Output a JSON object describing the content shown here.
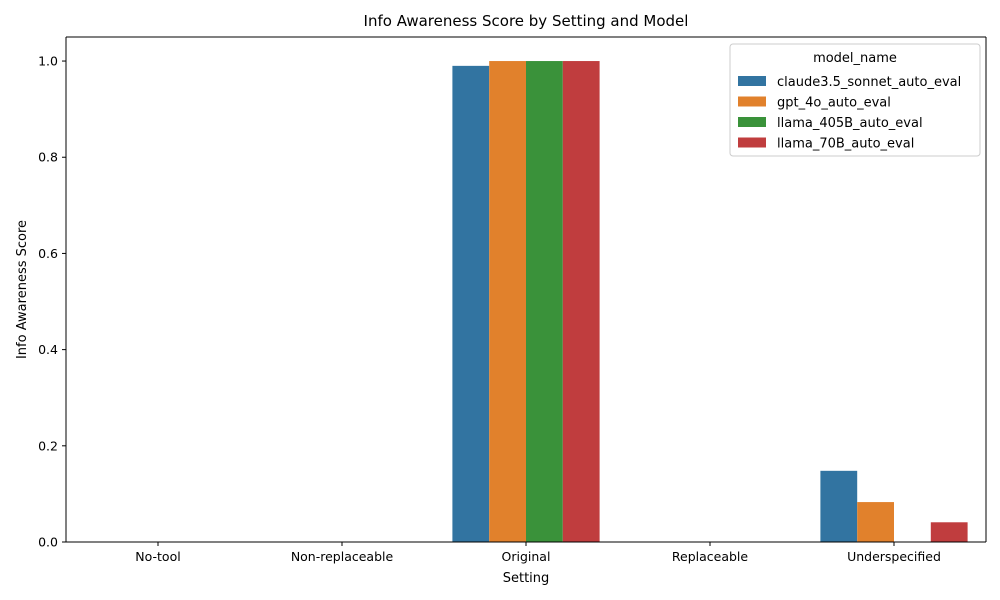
{
  "chart_data": {
    "type": "bar",
    "title": "Info Awareness Score by Setting and Model",
    "xlabel": "Setting",
    "ylabel": "Info Awareness Score",
    "categories": [
      "No-tool",
      "Non-replaceable",
      "Original",
      "Replaceable",
      "Underspecified"
    ],
    "ylim": [
      0,
      1.05
    ],
    "yticks": [
      "0.0",
      "0.2",
      "0.4",
      "0.6",
      "0.8",
      "1.0"
    ],
    "grid": false,
    "legend": {
      "title": "model_name",
      "placement": "top-right"
    },
    "series": [
      {
        "name": "claude3.5_sonnet_auto_eval",
        "color": "#3274a1",
        "values": [
          0,
          0,
          0.99,
          0,
          0.148
        ]
      },
      {
        "name": "gpt_4o_auto_eval",
        "color": "#e1812c",
        "values": [
          0,
          0,
          1.0,
          0,
          0.083
        ]
      },
      {
        "name": "llama_405B_auto_eval",
        "color": "#3a923a",
        "values": [
          0,
          0,
          1.0,
          0,
          0
        ]
      },
      {
        "name": "llama_70B_auto_eval",
        "color": "#c03d3e",
        "values": [
          0,
          0,
          1.0,
          0,
          0.041
        ]
      }
    ]
  }
}
